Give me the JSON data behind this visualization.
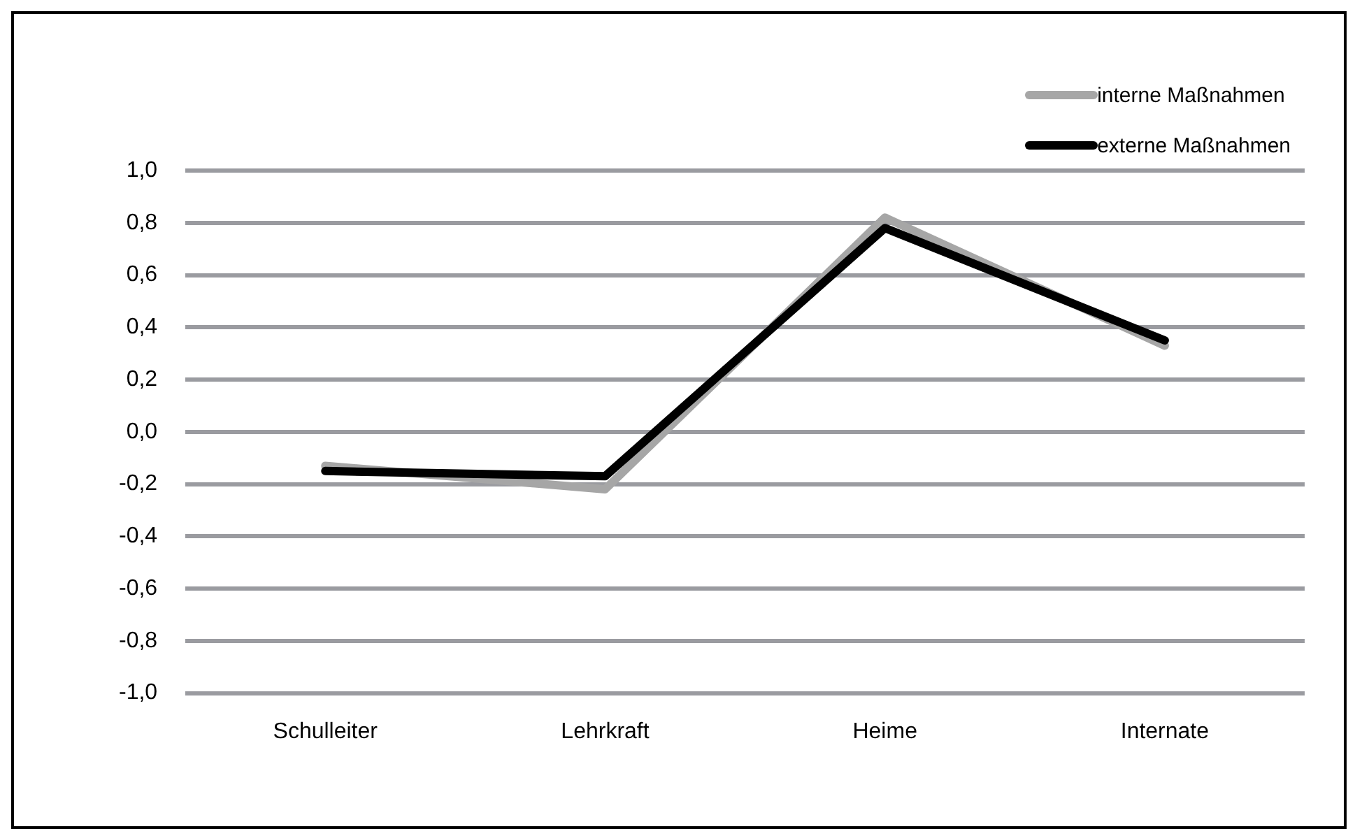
{
  "chart_data": {
    "type": "line",
    "categories": [
      "Schulleiter",
      "Lehrkraft",
      "Heime",
      "Internate"
    ],
    "series": [
      {
        "name": "interne Maßnahmen",
        "color": "#a6a6a6",
        "values": [
          -0.13,
          -0.22,
          0.82,
          0.33
        ]
      },
      {
        "name": "externe Maßnahmen",
        "color": "#000000",
        "values": [
          -0.15,
          -0.17,
          0.78,
          0.35
        ]
      }
    ],
    "ylim": [
      -1,
      1
    ],
    "yticks": [
      {
        "value": -1,
        "label": "-1,0"
      },
      {
        "value": -0.8,
        "label": "-0,8"
      },
      {
        "value": -0.6,
        "label": "-0,6"
      },
      {
        "value": -0.4,
        "label": "-0,4"
      },
      {
        "value": -0.2,
        "label": "-0,2"
      },
      {
        "value": 0,
        "label": "0,0"
      },
      {
        "value": 0.2,
        "label": "0,2"
      },
      {
        "value": 0.4,
        "label": "0,4"
      },
      {
        "value": 0.6,
        "label": "0,6"
      },
      {
        "value": 0.8,
        "label": "0,8"
      },
      {
        "value": 1,
        "label": "1,0"
      }
    ],
    "grid": "y",
    "legend": "top right",
    "marker": "none",
    "line_style": "solid"
  }
}
